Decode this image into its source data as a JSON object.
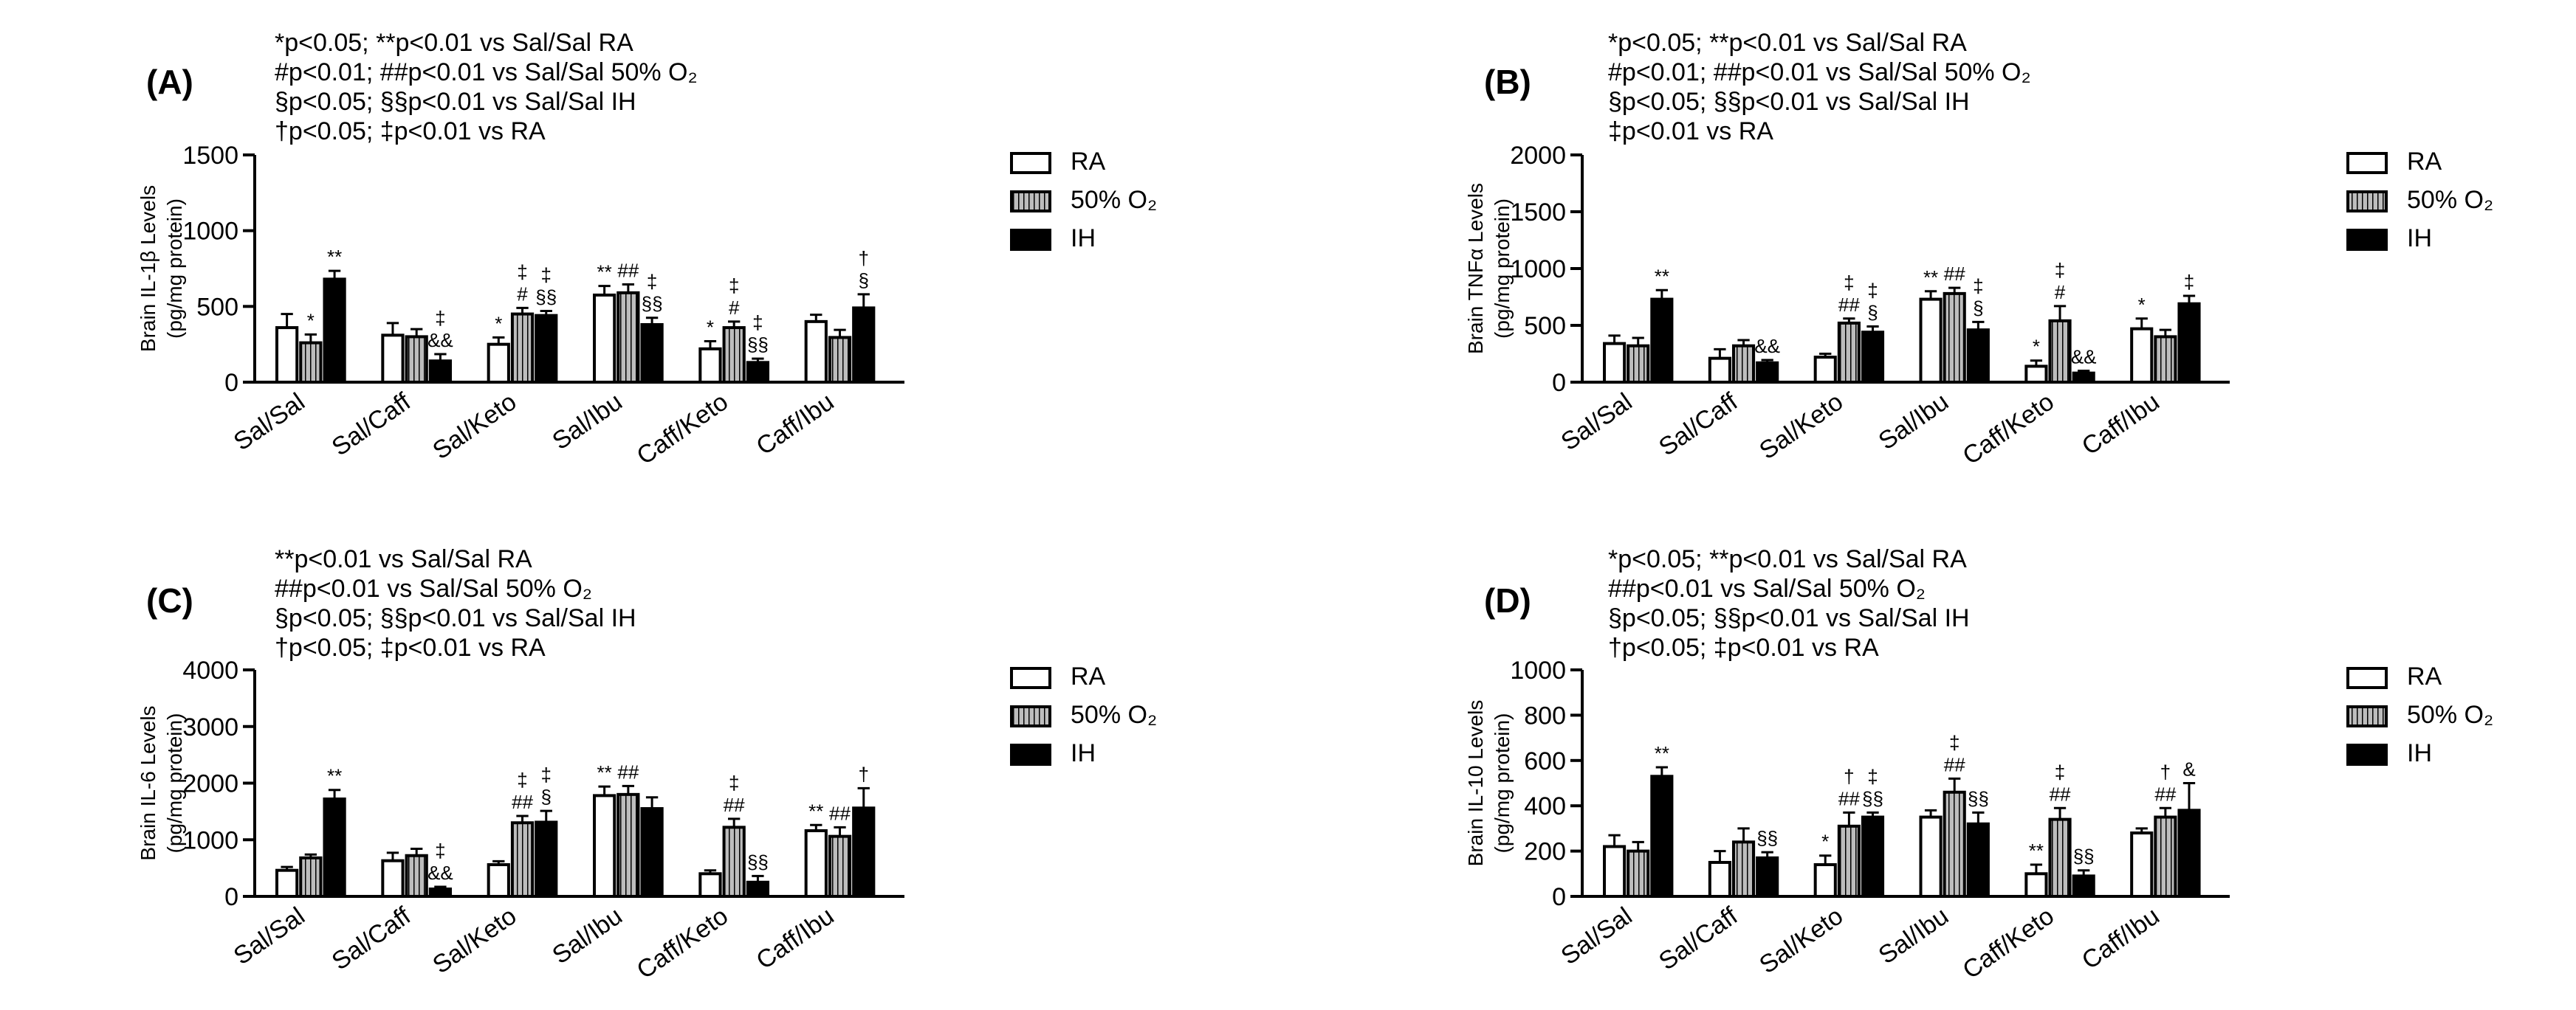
{
  "chart_data": [
    {
      "panel_label": "(A)",
      "type": "bar",
      "ylabel": [
        "Brain IL-1β Levels",
        "(pg/mg protein)"
      ],
      "ylim": [
        0,
        1500
      ],
      "yticks": [
        0,
        500,
        1000,
        1500
      ],
      "ytick_labels": [
        "0",
        "500",
        "1000",
        "1500"
      ],
      "categories": [
        "Sal/Sal",
        "Sal/Caff",
        "Sal/Keto",
        "Sal/Ibu",
        "Caff/Keto",
        "Caff/Ibu"
      ],
      "series": [
        {
          "name": "RA",
          "values": [
            360,
            310,
            250,
            575,
            220,
            400
          ],
          "errors": [
            90,
            80,
            45,
            60,
            50,
            45
          ]
        },
        {
          "name": "50% O₂",
          "values": [
            260,
            300,
            450,
            590,
            360,
            295
          ],
          "errors": [
            55,
            50,
            40,
            55,
            40,
            50
          ]
        },
        {
          "name": "IH",
          "values": [
            680,
            140,
            440,
            380,
            130,
            490
          ],
          "errors": [
            55,
            45,
            30,
            45,
            25,
            90
          ]
        }
      ],
      "legend": [
        "RA",
        "50% O₂",
        "IH"
      ],
      "legend_position": "right",
      "significance_notes": [
        "*p<0.05; **p<0.01 vs Sal/Sal RA",
        "#p<0.01; ##p<0.01 vs Sal/Sal 50% O₂",
        "§p<0.05; §§p<0.01 vs Sal/Sal IH",
        "†p<0.05; ‡p<0.01 vs RA"
      ],
      "bar_marks": [
        [
          {
            "t": "",
            "s": ""
          },
          {
            "t": "*",
            "s": "b"
          },
          {
            "t": "**",
            "s": "b"
          }
        ],
        [
          {
            "t": "",
            "s": ""
          },
          {
            "t": "",
            "s": ""
          },
          {
            "t": "‡ &&",
            "s": "b"
          }
        ],
        [
          {
            "t": "*",
            "s": "b"
          },
          {
            "t": "‡ #",
            "s": "p"
          },
          {
            "t": "‡ §§",
            "s": "b"
          }
        ],
        [
          {
            "t": "**",
            "s": "b"
          },
          {
            "t": "##",
            "s": "p"
          },
          {
            "t": "‡ §§",
            "s": "b"
          }
        ],
        [
          {
            "t": "*",
            "s": "b"
          },
          {
            "t": "‡ #",
            "s": "p"
          },
          {
            "t": "‡ §§",
            "s": "b"
          }
        ],
        [
          {
            "t": "",
            "s": ""
          },
          {
            "t": "",
            "s": ""
          },
          {
            "t": "† §",
            "s": "b"
          }
        ]
      ]
    },
    {
      "panel_label": "(B)",
      "type": "bar",
      "ylabel": [
        "Brain TNFα Levels",
        "(pg/mg protein)"
      ],
      "ylim": [
        0,
        2000
      ],
      "yticks": [
        0,
        500,
        1000,
        1500,
        2000
      ],
      "ytick_labels": [
        "0",
        "500",
        "1000",
        "1500",
        "2000"
      ],
      "categories": [
        "Sal/Sal",
        "Sal/Caff",
        "Sal/Keto",
        "Sal/Ibu",
        "Caff/Keto",
        "Caff/Ibu"
      ],
      "series": [
        {
          "name": "RA",
          "values": [
            340,
            210,
            220,
            730,
            140,
            470
          ],
          "errors": [
            70,
            80,
            30,
            70,
            50,
            90
          ]
        },
        {
          "name": "50% O₂",
          "values": [
            320,
            320,
            520,
            780,
            540,
            400
          ],
          "errors": [
            70,
            50,
            40,
            50,
            130,
            60
          ]
        },
        {
          "name": "IH",
          "values": [
            730,
            170,
            440,
            460,
            80,
            690
          ],
          "errors": [
            80,
            25,
            50,
            70,
            20,
            70
          ]
        }
      ],
      "legend": [
        "RA",
        "50% O₂",
        "IH"
      ],
      "legend_position": "right",
      "significance_notes": [
        "*p<0.05; **p<0.01 vs Sal/Sal RA",
        "#p<0.01; ##p<0.01 vs Sal/Sal 50% O₂",
        "§p<0.05; §§p<0.01 vs Sal/Sal IH",
        "‡p<0.01 vs RA"
      ],
      "bar_marks": [
        [
          {
            "t": "",
            "s": ""
          },
          {
            "t": "",
            "s": ""
          },
          {
            "t": "**",
            "s": "b"
          }
        ],
        [
          {
            "t": "",
            "s": ""
          },
          {
            "t": "",
            "s": ""
          },
          {
            "t": "&&",
            "s": "b"
          }
        ],
        [
          {
            "t": "",
            "s": ""
          },
          {
            "t": "‡ ##",
            "s": "p"
          },
          {
            "t": "‡ §",
            "s": "b"
          }
        ],
        [
          {
            "t": "**",
            "s": "b"
          },
          {
            "t": "##",
            "s": "p"
          },
          {
            "t": "‡ §",
            "s": "b"
          }
        ],
        [
          {
            "t": "*",
            "s": "b"
          },
          {
            "t": "‡ #",
            "s": "p"
          },
          {
            "t": "&&",
            "s": "b"
          }
        ],
        [
          {
            "t": "*",
            "s": "b"
          },
          {
            "t": "",
            "s": ""
          },
          {
            "t": "‡",
            "s": "b"
          }
        ]
      ]
    },
    {
      "panel_label": "(C)",
      "type": "bar",
      "ylabel": [
        "Brain IL-6 Levels",
        "(pg/mg protein)"
      ],
      "ylim": [
        0,
        4000
      ],
      "yticks": [
        0,
        1000,
        2000,
        3000,
        4000
      ],
      "ytick_labels": [
        "0",
        "1000",
        "2000",
        "3000",
        "4000"
      ],
      "categories": [
        "Sal/Sal",
        "Sal/Caff",
        "Sal/Keto",
        "Sal/Ibu",
        "Caff/Keto",
        "Caff/Ibu"
      ],
      "series": [
        {
          "name": "RA",
          "values": [
            460,
            630,
            560,
            1780,
            400,
            1160
          ],
          "errors": [
            60,
            140,
            60,
            160,
            60,
            100
          ]
        },
        {
          "name": "50% O₂",
          "values": [
            680,
            720,
            1300,
            1800,
            1220,
            1060
          ],
          "errors": [
            60,
            120,
            120,
            150,
            150,
            160
          ]
        },
        {
          "name": "IH",
          "values": [
            1720,
            130,
            1310,
            1550,
            250,
            1560
          ],
          "errors": [
            160,
            40,
            200,
            200,
            110,
            350
          ]
        }
      ],
      "legend": [
        "RA",
        "50% O₂",
        "IH"
      ],
      "legend_position": "right",
      "significance_notes": [
        "**p<0.01 vs Sal/Sal RA",
        "##p<0.01 vs Sal/Sal 50% O₂",
        "§p<0.05; §§p<0.01 vs Sal/Sal IH",
        "†p<0.05; ‡p<0.01 vs RA"
      ],
      "bar_marks": [
        [
          {
            "t": "",
            "s": ""
          },
          {
            "t": "",
            "s": ""
          },
          {
            "t": "**",
            "s": "b"
          }
        ],
        [
          {
            "t": "",
            "s": ""
          },
          {
            "t": "",
            "s": ""
          },
          {
            "t": "‡ &&",
            "s": "b"
          }
        ],
        [
          {
            "t": "",
            "s": ""
          },
          {
            "t": "‡ ##",
            "s": "p"
          },
          {
            "t": "‡ §",
            "s": "b"
          }
        ],
        [
          {
            "t": "**",
            "s": "b"
          },
          {
            "t": "##",
            "s": "p"
          },
          {
            "t": "",
            "s": ""
          }
        ],
        [
          {
            "t": "",
            "s": ""
          },
          {
            "t": "‡ ##",
            "s": "p"
          },
          {
            "t": "§§",
            "s": "b"
          }
        ],
        [
          {
            "t": "**",
            "s": "b"
          },
          {
            "t": "##",
            "s": "p"
          },
          {
            "t": "†",
            "s": "b"
          }
        ]
      ]
    },
    {
      "panel_label": "(D)",
      "type": "bar",
      "ylabel": [
        "Brain IL-10 Levels",
        "(pg/mg protein)"
      ],
      "ylim": [
        0,
        1000
      ],
      "yticks": [
        0,
        200,
        400,
        600,
        800,
        1000
      ],
      "ytick_labels": [
        "0",
        "200",
        "400",
        "600",
        "800",
        "1000"
      ],
      "categories": [
        "Sal/Sal",
        "Sal/Caff",
        "Sal/Keto",
        "Sal/Ibu",
        "Caff/Keto",
        "Caff/Ibu"
      ],
      "series": [
        {
          "name": "RA",
          "values": [
            220,
            150,
            140,
            350,
            100,
            280
          ],
          "errors": [
            50,
            50,
            40,
            30,
            40,
            20
          ]
        },
        {
          "name": "50% O₂",
          "values": [
            200,
            240,
            310,
            460,
            340,
            350
          ],
          "errors": [
            40,
            60,
            60,
            60,
            50,
            40
          ]
        },
        {
          "name": "IH",
          "values": [
            530,
            170,
            350,
            320,
            90,
            380
          ],
          "errors": [
            40,
            25,
            20,
            50,
            25,
            120
          ]
        }
      ],
      "legend": [
        "RA",
        "50% O₂",
        "IH"
      ],
      "legend_position": "right",
      "significance_notes": [
        "*p<0.05; **p<0.01 vs Sal/Sal RA",
        "##p<0.01 vs Sal/Sal 50% O₂",
        "§p<0.05; §§p<0.01 vs Sal/Sal IH",
        "†p<0.05; ‡p<0.01 vs RA"
      ],
      "bar_marks": [
        [
          {
            "t": "",
            "s": ""
          },
          {
            "t": "",
            "s": ""
          },
          {
            "t": "**",
            "s": "b"
          }
        ],
        [
          {
            "t": "",
            "s": ""
          },
          {
            "t": "",
            "s": ""
          },
          {
            "t": "§§",
            "s": "b"
          }
        ],
        [
          {
            "t": "*",
            "s": "b"
          },
          {
            "t": "† ##",
            "s": "p"
          },
          {
            "t": "‡ §§",
            "s": "b"
          }
        ],
        [
          {
            "t": "",
            "s": ""
          },
          {
            "t": "‡ ##",
            "s": "p"
          },
          {
            "t": "§§",
            "s": "b"
          }
        ],
        [
          {
            "t": "**",
            "s": "b"
          },
          {
            "t": "‡ ##",
            "s": "p"
          },
          {
            "t": "§§",
            "s": "b"
          }
        ],
        [
          {
            "t": "",
            "s": ""
          },
          {
            "t": "† ##",
            "s": "p"
          },
          {
            "t": "&",
            "s": "b"
          }
        ]
      ]
    }
  ],
  "colors": {
    "ra_fill": "#ffffff",
    "o2_fill": "#bdbdbd",
    "ih_fill": "#000000",
    "stroke": "#000000"
  }
}
